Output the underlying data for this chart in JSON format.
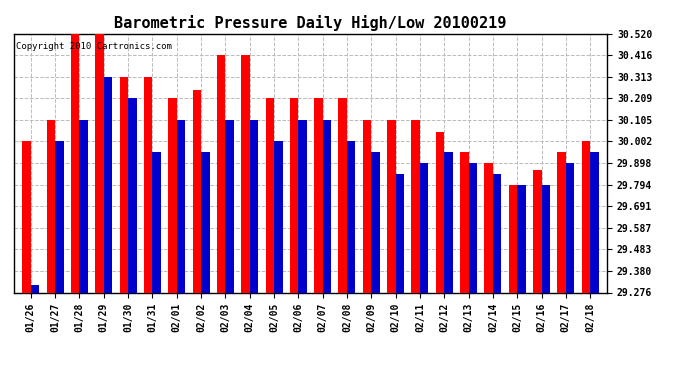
{
  "title": "Barometric Pressure Daily High/Low 20100219",
  "copyright": "Copyright 2010 Cartronics.com",
  "dates": [
    "01/26",
    "01/27",
    "01/28",
    "01/29",
    "01/30",
    "01/31",
    "02/01",
    "02/02",
    "02/03",
    "02/04",
    "02/05",
    "02/06",
    "02/07",
    "02/08",
    "02/09",
    "02/10",
    "02/11",
    "02/12",
    "02/13",
    "02/14",
    "02/15",
    "02/16",
    "02/17",
    "02/18"
  ],
  "highs": [
    30.002,
    30.105,
    30.52,
    30.52,
    30.313,
    30.313,
    30.209,
    30.25,
    30.416,
    30.416,
    30.209,
    30.209,
    30.209,
    30.209,
    30.105,
    30.105,
    30.105,
    30.05,
    29.95,
    29.898,
    29.794,
    29.864,
    29.95,
    30.002
  ],
  "lows": [
    29.31,
    30.002,
    30.105,
    30.313,
    30.209,
    29.95,
    30.105,
    29.95,
    30.105,
    30.105,
    30.002,
    30.105,
    30.105,
    30.002,
    29.95,
    29.846,
    29.898,
    29.95,
    29.898,
    29.846,
    29.794,
    29.794,
    29.898,
    29.95
  ],
  "high_color": "#ff0000",
  "low_color": "#0000cc",
  "bg_color": "#ffffff",
  "grid_color": "#bbbbbb",
  "ylim_min": 29.276,
  "ylim_max": 30.52,
  "yticks": [
    29.276,
    29.38,
    29.483,
    29.587,
    29.691,
    29.794,
    29.898,
    30.002,
    30.105,
    30.209,
    30.313,
    30.416,
    30.52
  ],
  "title_fontsize": 11,
  "copyright_fontsize": 6.5,
  "bar_width": 0.35,
  "fig_width": 6.9,
  "fig_height": 3.75,
  "dpi": 100
}
